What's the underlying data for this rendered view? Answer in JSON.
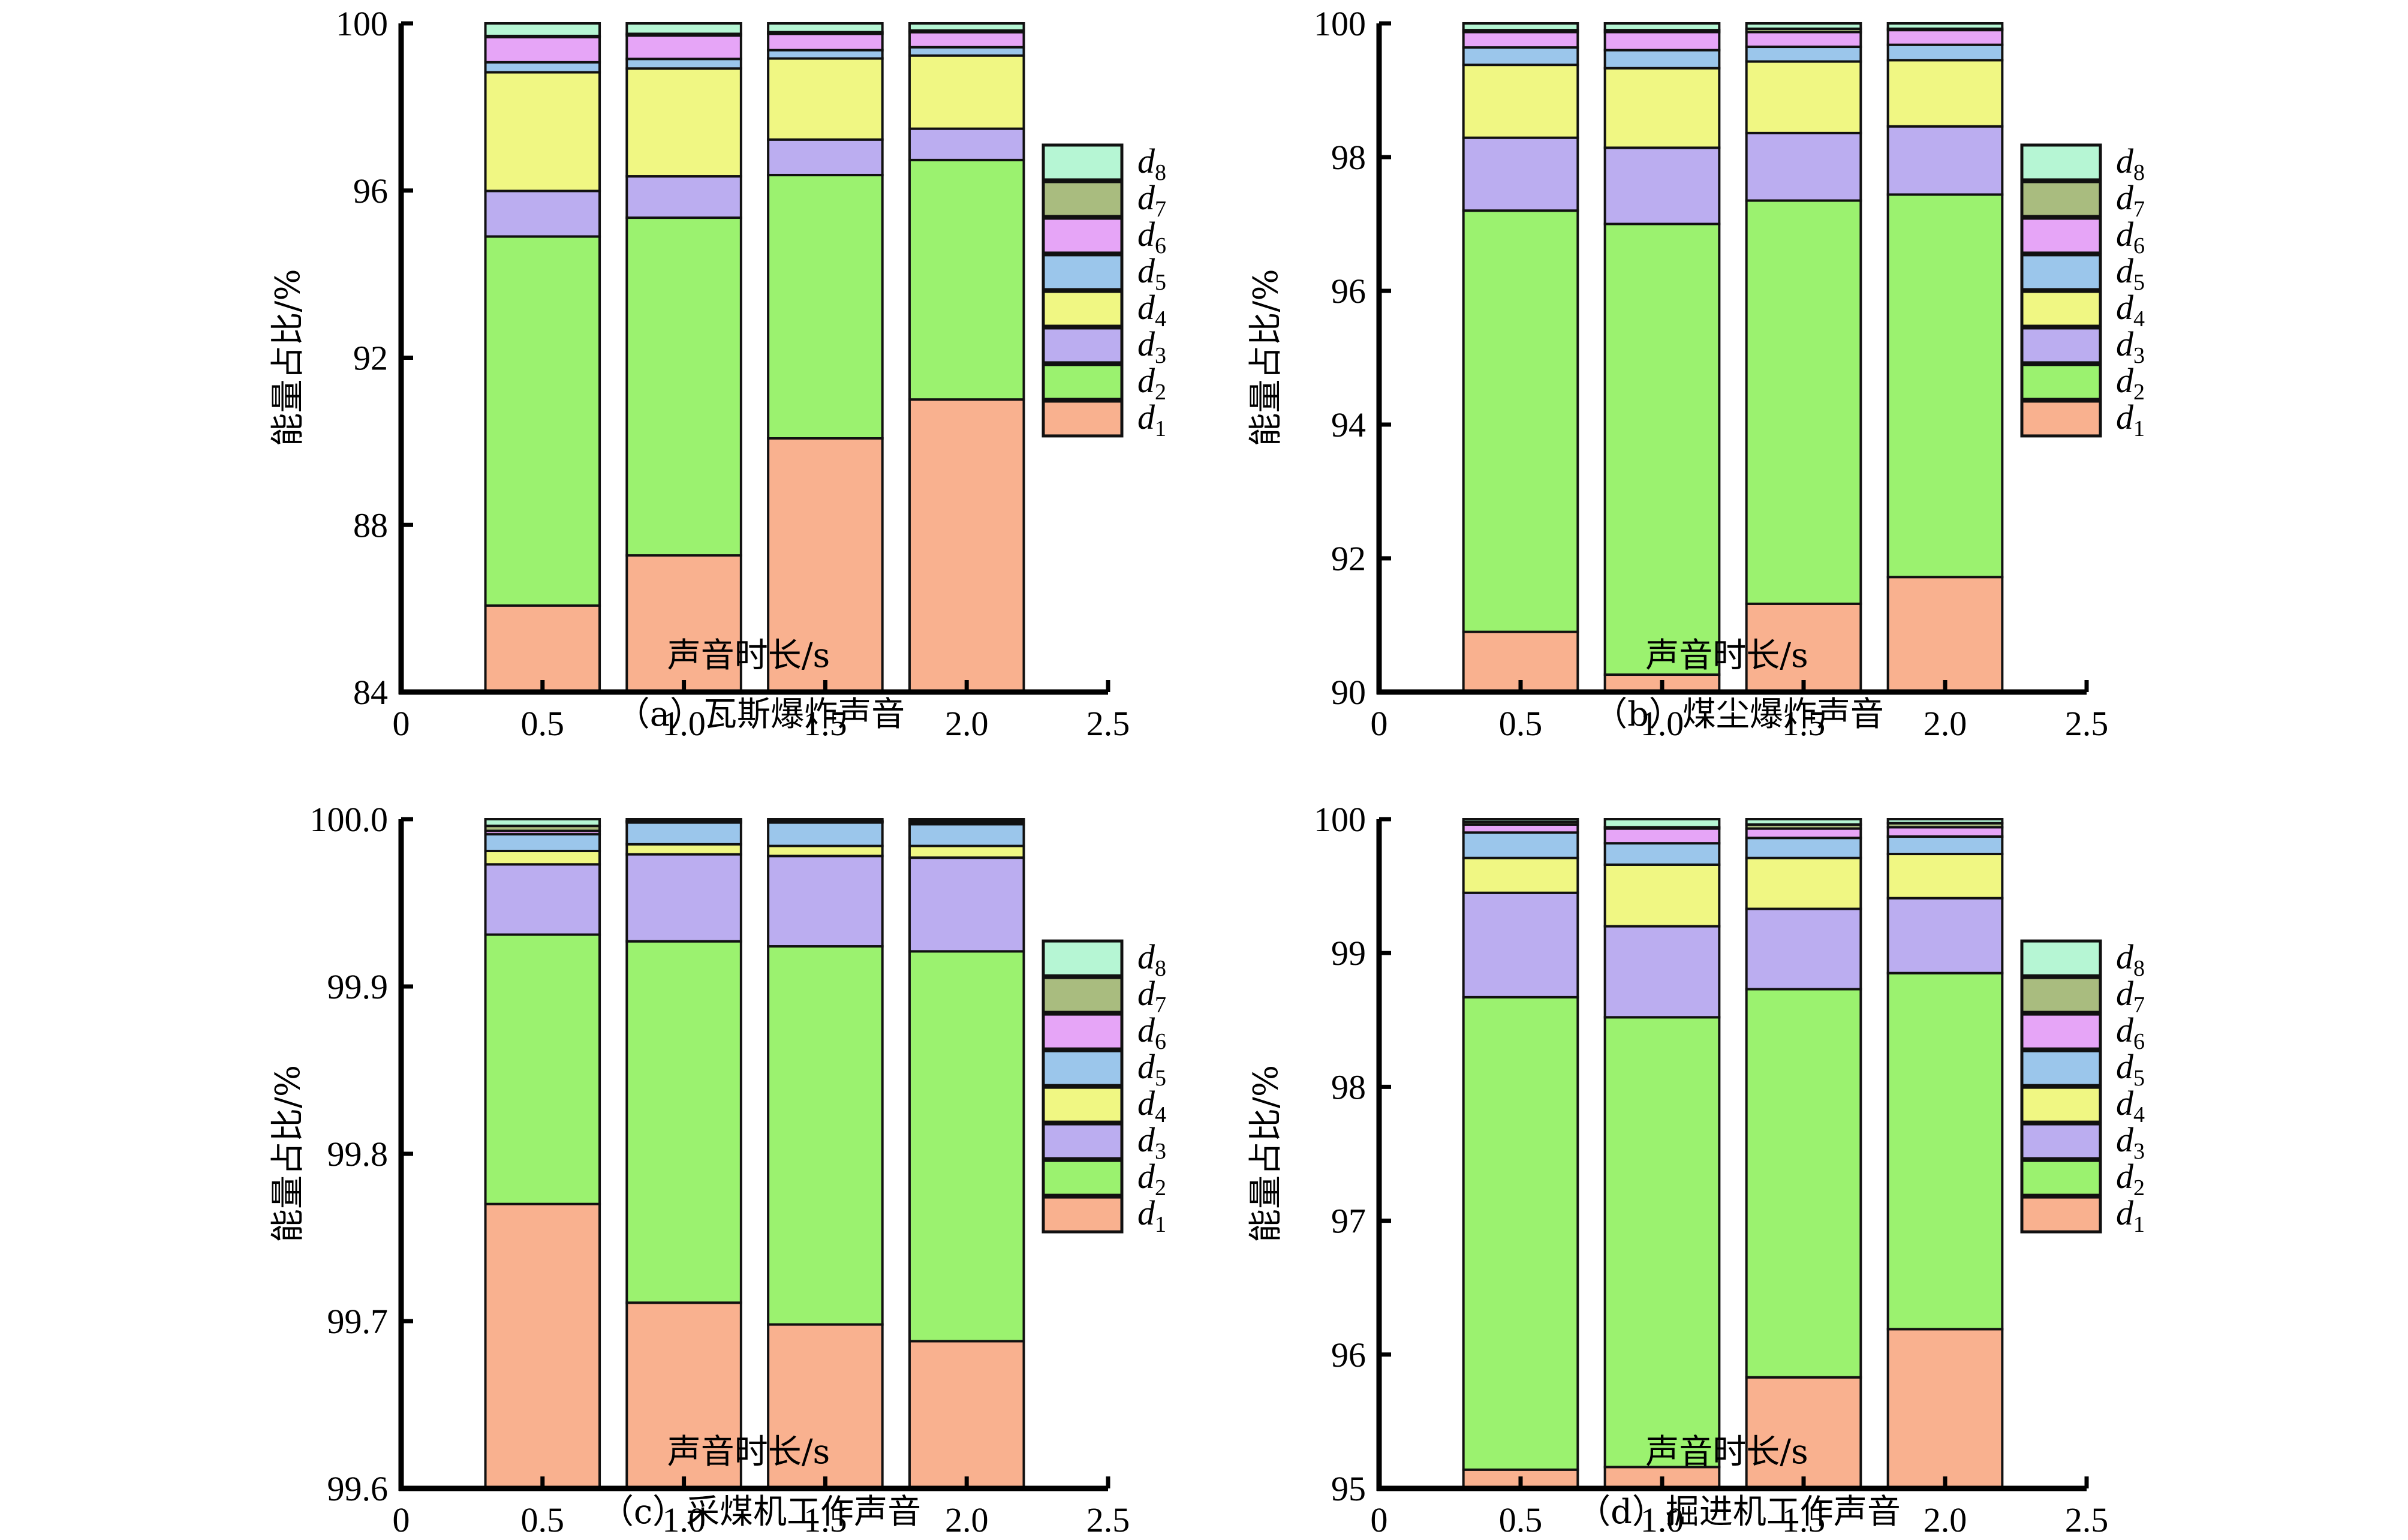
{
  "figure": {
    "legend_labels": [
      "d1",
      "d2",
      "d3",
      "d4",
      "d5",
      "d6",
      "d7",
      "d8"
    ],
    "series_colors": {
      "d1": "#f9b18f",
      "d2": "#9bf26f",
      "d3": "#bbadf0",
      "d4": "#f0f783",
      "d5": "#9bc6eb",
      "d6": "#e6a5f7",
      "d7": "#a9bc7f",
      "d8": "#b6f6d4"
    }
  },
  "chart_data": [
    {
      "type": "bar",
      "stacked": true,
      "panel": "a",
      "caption": "（a）瓦斯爆炸声音",
      "xlabel": "声音时长/s",
      "ylabel": "能量占比/%",
      "x": [
        0.5,
        1.0,
        1.5,
        2.0
      ],
      "xlim": [
        0,
        2.5
      ],
      "xticks": [
        "0",
        "0.5",
        "1.0",
        "1.5",
        "2.0",
        "2.5"
      ],
      "ylim": [
        84,
        100
      ],
      "yticks": [
        "84",
        "88",
        "92",
        "96",
        "100"
      ],
      "ytick_values": [
        84,
        88,
        92,
        96,
        100
      ],
      "legend_position": "right",
      "cumulative_tops": {
        "d1": [
          86.07,
          87.27,
          90.07,
          91.0
        ],
        "d2": [
          94.9,
          95.35,
          96.37,
          96.73
        ],
        "d3": [
          95.99,
          96.34,
          97.22,
          97.48
        ],
        "d4": [
          98.83,
          98.92,
          99.16,
          99.23
        ],
        "d5": [
          99.07,
          99.15,
          99.36,
          99.43
        ],
        "d6": [
          99.67,
          99.71,
          99.75,
          99.79
        ],
        "d7": [
          99.7,
          99.75,
          99.79,
          99.83
        ],
        "d8": [
          100,
          100,
          100,
          100
        ]
      }
    },
    {
      "type": "bar",
      "stacked": true,
      "panel": "b",
      "caption": "（b）煤尘爆炸声音",
      "xlabel": "声音时长/s",
      "ylabel": "能量占比/%",
      "x": [
        0.5,
        1.0,
        1.5,
        2.0
      ],
      "xlim": [
        0,
        2.5
      ],
      "xticks": [
        "0",
        "0.5",
        "1.0",
        "1.5",
        "2.0",
        "2.5"
      ],
      "ylim": [
        90,
        100
      ],
      "yticks": [
        "90",
        "92",
        "94",
        "96",
        "98",
        "100"
      ],
      "ytick_values": [
        90,
        92,
        94,
        96,
        98,
        100
      ],
      "legend_position": "right",
      "cumulative_tops": {
        "d1": [
          90.9,
          90.26,
          91.32,
          91.72
        ],
        "d2": [
          97.2,
          97.0,
          97.35,
          97.44
        ],
        "d3": [
          98.29,
          98.14,
          98.36,
          98.46
        ],
        "d4": [
          99.38,
          99.33,
          99.43,
          99.45
        ],
        "d5": [
          99.64,
          99.6,
          99.65,
          99.68
        ],
        "d6": [
          99.87,
          99.87,
          99.87,
          99.9
        ],
        "d7": [
          99.9,
          99.9,
          99.92,
          99.92
        ],
        "d8": [
          100,
          100,
          100,
          100
        ]
      }
    },
    {
      "type": "bar",
      "stacked": true,
      "panel": "c",
      "caption": "（c）采煤机工作声音",
      "xlabel": "声音时长/s",
      "ylabel": "能量占比/%",
      "x": [
        0.5,
        1.0,
        1.5,
        2.0
      ],
      "xlim": [
        0,
        2.5
      ],
      "xticks": [
        "0",
        "0.5",
        "1.0",
        "1.5",
        "2.0",
        "2.5"
      ],
      "ylim": [
        99.6,
        100.0
      ],
      "yticks": [
        "99.6",
        "99.7",
        "99.8",
        "99.9",
        "100.0"
      ],
      "ytick_values": [
        99.6,
        99.7,
        99.8,
        99.9,
        100.0
      ],
      "legend_position": "right",
      "cumulative_tops": {
        "d1": [
          99.77,
          99.711,
          99.698,
          99.688
        ],
        "d2": [
          99.931,
          99.927,
          99.924,
          99.921
        ],
        "d3": [
          99.973,
          99.979,
          99.978,
          99.977
        ],
        "d4": [
          99.981,
          99.985,
          99.984,
          99.984
        ],
        "d5": [
          99.991,
          99.998,
          99.998,
          99.997
        ],
        "d6": [
          99.993,
          99.9985,
          99.9985,
          99.998
        ],
        "d7": [
          99.996,
          99.999,
          99.999,
          99.999
        ],
        "d8": [
          100,
          100,
          100,
          100
        ]
      }
    },
    {
      "type": "bar",
      "stacked": true,
      "panel": "d",
      "caption": "（d）掘进机工作声音",
      "xlabel": "声音时长/s",
      "ylabel": "能量占比/%",
      "x": [
        0.5,
        1.0,
        1.5,
        2.0
      ],
      "xlim": [
        0,
        2.5
      ],
      "xticks": [
        "0",
        "0.5",
        "1.0",
        "1.5",
        "2.0",
        "2.5"
      ],
      "ylim": [
        95,
        100
      ],
      "yticks": [
        "95",
        "96",
        "97",
        "98",
        "99",
        "100"
      ],
      "ytick_values": [
        95,
        96,
        97,
        98,
        99,
        100
      ],
      "legend_position": "right",
      "cumulative_tops": {
        "d1": [
          95.14,
          95.16,
          95.83,
          96.19
        ],
        "d2": [
          98.67,
          98.52,
          98.73,
          98.85
        ],
        "d3": [
          99.45,
          99.2,
          99.33,
          99.41
        ],
        "d4": [
          99.71,
          99.66,
          99.71,
          99.74
        ],
        "d5": [
          99.9,
          99.82,
          99.86,
          99.87
        ],
        "d6": [
          99.96,
          99.93,
          99.93,
          99.94
        ],
        "d7": [
          99.98,
          99.94,
          99.96,
          99.97
        ],
        "d8": [
          100,
          100,
          100,
          100
        ]
      }
    }
  ]
}
